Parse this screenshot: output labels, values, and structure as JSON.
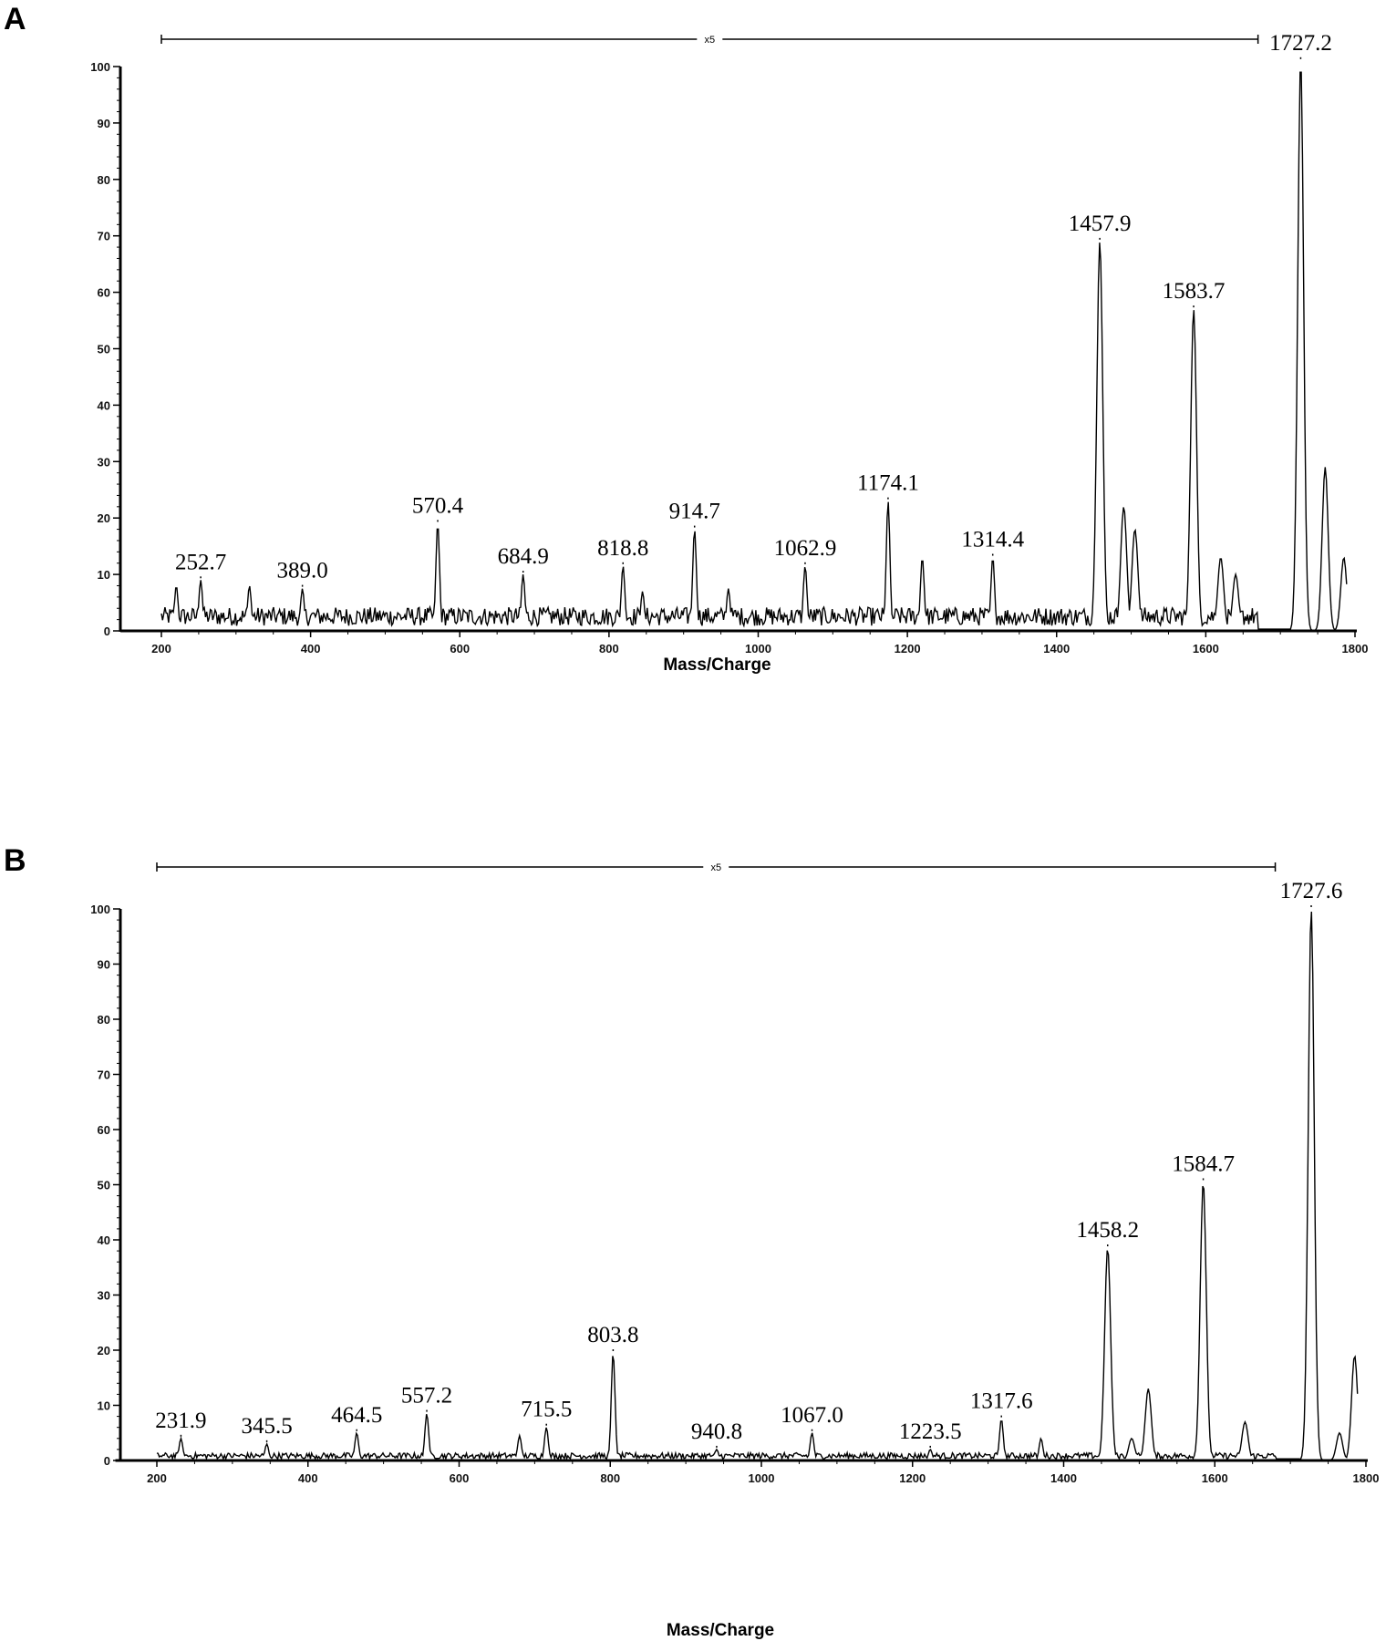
{
  "chart_data": [
    {
      "type": "line",
      "panel_label": "A",
      "xlabel": "Mass/Charge",
      "ylabel": "",
      "xlim": [
        150,
        1800
      ],
      "ylim": [
        0,
        100
      ],
      "x_ticks": [
        200,
        400,
        600,
        800,
        1000,
        1200,
        1400,
        1600,
        1800
      ],
      "y_ticks": [
        0,
        10,
        20,
        30,
        40,
        50,
        60,
        70,
        80,
        90,
        100
      ],
      "magnification": {
        "label": "x5",
        "range": [
          200,
          1670
        ]
      },
      "labeled_peaks": [
        {
          "mz": 252.7,
          "label": "252.7",
          "intensity": 9
        },
        {
          "mz": 389.0,
          "label": "389.0",
          "intensity": 7.5
        },
        {
          "mz": 570.4,
          "label": "570.4",
          "intensity": 19
        },
        {
          "mz": 684.9,
          "label": "684.9",
          "intensity": 10
        },
        {
          "mz": 818.8,
          "label": "818.8",
          "intensity": 11.5
        },
        {
          "mz": 914.7,
          "label": "914.7",
          "intensity": 18
        },
        {
          "mz": 1062.9,
          "label": "1062.9",
          "intensity": 11.5
        },
        {
          "mz": 1174.1,
          "label": "1174.1",
          "intensity": 23
        },
        {
          "mz": 1314.4,
          "label": "1314.4",
          "intensity": 13
        },
        {
          "mz": 1457.9,
          "label": "1457.9",
          "intensity": 69
        },
        {
          "mz": 1583.7,
          "label": "1583.7",
          "intensity": 57
        },
        {
          "mz": 1727.2,
          "label": "1727.2",
          "intensity": 101
        }
      ],
      "other_peaks": [
        {
          "mz": 220,
          "intensity": 8
        },
        {
          "mz": 318,
          "intensity": 8
        },
        {
          "mz": 845,
          "intensity": 7
        },
        {
          "mz": 960,
          "intensity": 7.5
        },
        {
          "mz": 1220,
          "intensity": 13
        },
        {
          "mz": 1490,
          "intensity": 22
        },
        {
          "mz": 1505,
          "intensity": 18
        },
        {
          "mz": 1620,
          "intensity": 13
        },
        {
          "mz": 1640,
          "intensity": 10
        },
        {
          "mz": 1760,
          "intensity": 29
        },
        {
          "mz": 1785,
          "intensity": 13
        }
      ],
      "baseline_level": 3
    },
    {
      "type": "line",
      "panel_label": "B",
      "xlabel": "Mass/Charge",
      "ylabel": "",
      "xlim": [
        150,
        1800
      ],
      "ylim": [
        0,
        100
      ],
      "x_ticks": [
        200,
        400,
        600,
        800,
        1000,
        1200,
        1400,
        1600,
        1800
      ],
      "y_ticks": [
        0,
        10,
        20,
        30,
        40,
        50,
        60,
        70,
        80,
        90,
        100
      ],
      "magnification": {
        "label": "x5",
        "range": [
          200,
          1680
        ]
      },
      "labeled_peaks": [
        {
          "mz": 231.9,
          "label": "231.9",
          "intensity": 4
        },
        {
          "mz": 345.5,
          "label": "345.5",
          "intensity": 3
        },
        {
          "mz": 464.5,
          "label": "464.5",
          "intensity": 5
        },
        {
          "mz": 557.2,
          "label": "557.2",
          "intensity": 8.5
        },
        {
          "mz": 715.5,
          "label": "715.5",
          "intensity": 6
        },
        {
          "mz": 803.8,
          "label": "803.8",
          "intensity": 19.5
        },
        {
          "mz": 940.8,
          "label": "940.8",
          "intensity": 2
        },
        {
          "mz": 1067.0,
          "label": "1067.0",
          "intensity": 5
        },
        {
          "mz": 1223.5,
          "label": "1223.5",
          "intensity": 2
        },
        {
          "mz": 1317.6,
          "label": "1317.6",
          "intensity": 7.5
        },
        {
          "mz": 1458.2,
          "label": "1458.2",
          "intensity": 38.5
        },
        {
          "mz": 1584.7,
          "label": "1584.7",
          "intensity": 50.5
        },
        {
          "mz": 1727.6,
          "label": "1727.6",
          "intensity": 100
        }
      ],
      "other_peaks": [
        {
          "mz": 680,
          "intensity": 4.5
        },
        {
          "mz": 1370,
          "intensity": 4
        },
        {
          "mz": 1490,
          "intensity": 4
        },
        {
          "mz": 1512,
          "intensity": 13
        },
        {
          "mz": 1640,
          "intensity": 7
        },
        {
          "mz": 1765,
          "intensity": 5
        },
        {
          "mz": 1785,
          "intensity": 19
        }
      ],
      "baseline_level": 1
    }
  ]
}
